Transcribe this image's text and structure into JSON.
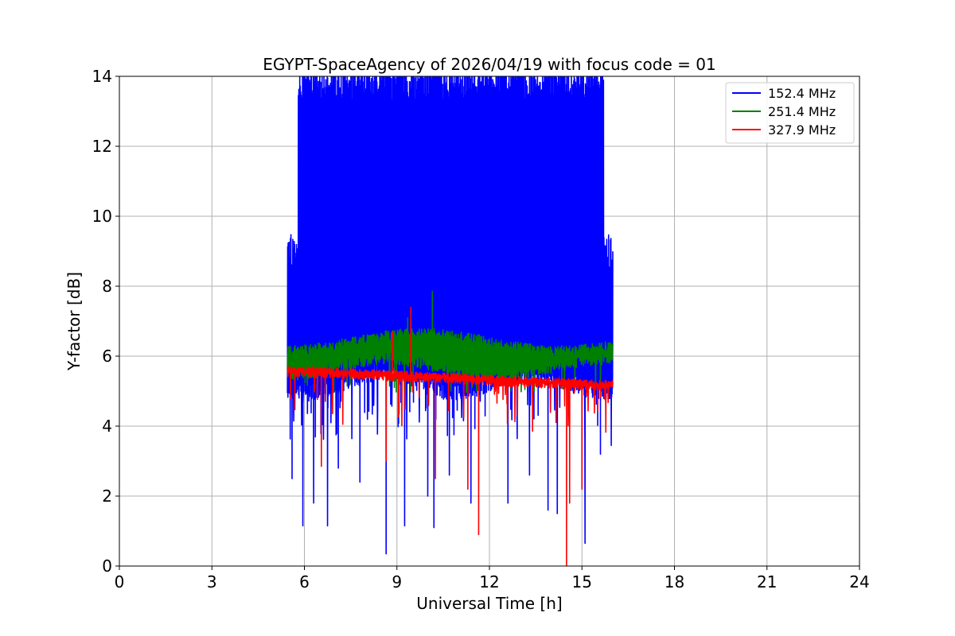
{
  "chart_data": {
    "type": "line",
    "title": "EGYPT-SpaceAgency of 2026/04/19 with focus code = 01",
    "xlabel": "Universal Time [h]",
    "ylabel": "Y-factor [dB]",
    "xlim": [
      0,
      24
    ],
    "ylim": [
      0,
      14
    ],
    "xticks": [
      0,
      3,
      6,
      9,
      12,
      15,
      18,
      21,
      24
    ],
    "yticks": [
      0,
      2,
      4,
      6,
      8,
      10,
      12,
      14
    ],
    "xtick_labels": [
      "0",
      "3",
      "6",
      "9",
      "12",
      "15",
      "18",
      "21",
      "24"
    ],
    "ytick_labels": [
      "0",
      "2",
      "4",
      "6",
      "8",
      "10",
      "12",
      "14"
    ],
    "grid": true,
    "legend_position": "top-right",
    "data_range_hours": [
      5.45,
      16.0
    ],
    "series": [
      {
        "name": "152.4 MHz",
        "legend_label": " 152.4 MHz",
        "color": "#0000ff",
        "typical_band_db": [
          5.0,
          14.0
        ],
        "dips": [
          {
            "x": 5.6,
            "y": 2.5
          },
          {
            "x": 5.95,
            "y": 1.15
          },
          {
            "x": 6.3,
            "y": 1.8
          },
          {
            "x": 6.75,
            "y": 1.15
          },
          {
            "x": 7.1,
            "y": 2.8
          },
          {
            "x": 7.8,
            "y": 2.4
          },
          {
            "x": 8.65,
            "y": 0.35
          },
          {
            "x": 9.25,
            "y": 1.15
          },
          {
            "x": 10.0,
            "y": 2.0
          },
          {
            "x": 10.2,
            "y": 1.1
          },
          {
            "x": 10.7,
            "y": 2.6
          },
          {
            "x": 11.4,
            "y": 1.8
          },
          {
            "x": 12.6,
            "y": 1.8
          },
          {
            "x": 13.3,
            "y": 2.6
          },
          {
            "x": 13.9,
            "y": 1.6
          },
          {
            "x": 14.2,
            "y": 1.5
          },
          {
            "x": 15.1,
            "y": 0.65
          },
          {
            "x": 15.6,
            "y": 3.2
          },
          {
            "x": 15.95,
            "y": 3.45
          }
        ]
      },
      {
        "name": "251.4 MHz",
        "legend_label": " 251.4 MHz",
        "color": "#008000",
        "typical_band_db": [
          5.3,
          6.9
        ],
        "spikes": [
          {
            "x": 10.15,
            "y": 7.85
          },
          {
            "x": 9.35,
            "y": 7.1
          }
        ]
      },
      {
        "name": "327.9 MHz",
        "legend_label": " 327.9 MHz",
        "color": "#ff0000",
        "typical_band_db": [
          4.9,
          5.9
        ],
        "spikes": [
          {
            "x": 9.45,
            "y": 7.4
          },
          {
            "x": 8.85,
            "y": 6.7
          }
        ],
        "dips": [
          {
            "x": 6.55,
            "y": 2.85
          },
          {
            "x": 8.65,
            "y": 3.0
          },
          {
            "x": 10.25,
            "y": 2.5
          },
          {
            "x": 11.3,
            "y": 2.2
          },
          {
            "x": 11.65,
            "y": 0.9
          },
          {
            "x": 14.5,
            "y": 0.0
          },
          {
            "x": 14.6,
            "y": 1.8
          },
          {
            "x": 15.0,
            "y": 2.2
          }
        ]
      }
    ]
  }
}
